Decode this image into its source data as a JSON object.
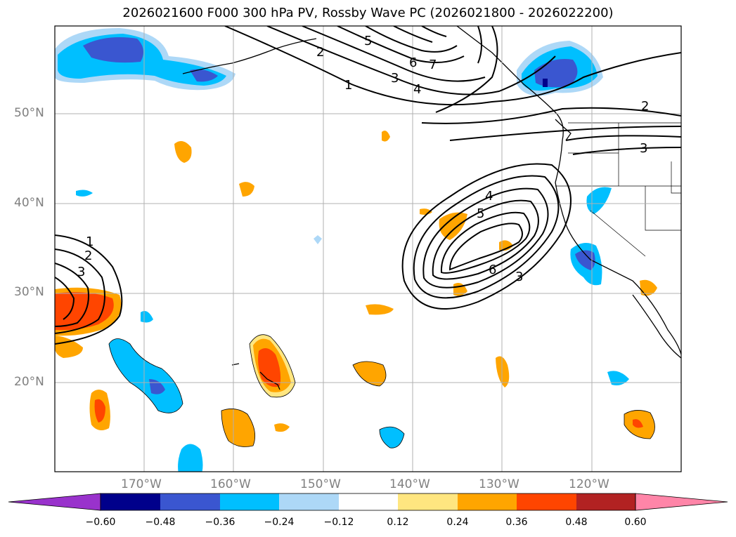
{
  "title": "2026021600 F000 300 hPa PV, Rossby Wave PC (2026021800 - 2026022200)",
  "map": {
    "lat_labels": [
      "50°N",
      "40°N",
      "30°N",
      "20°N"
    ],
    "lon_labels": [
      "170°W",
      "160°W",
      "150°W",
      "140°W",
      "130°W",
      "120°W"
    ],
    "contour_labels": [
      "1",
      "2",
      "3",
      "4",
      "5",
      "6",
      "7",
      "2",
      "3",
      "1",
      "2",
      "3",
      "4",
      "5",
      "6",
      "3"
    ]
  },
  "colorbar": {
    "ticks": [
      "−0.60",
      "−0.48",
      "−0.36",
      "−0.24",
      "−0.12",
      "0.12",
      "0.24",
      "0.36",
      "0.48",
      "0.60"
    ],
    "colors": [
      "#9932cc",
      "#00008b",
      "#3a56d0",
      "#00bfff",
      "#add8f7",
      "#ffffff",
      "#ffe680",
      "#ffa500",
      "#ff4500",
      "#b22222",
      "#ff85a8"
    ]
  }
}
